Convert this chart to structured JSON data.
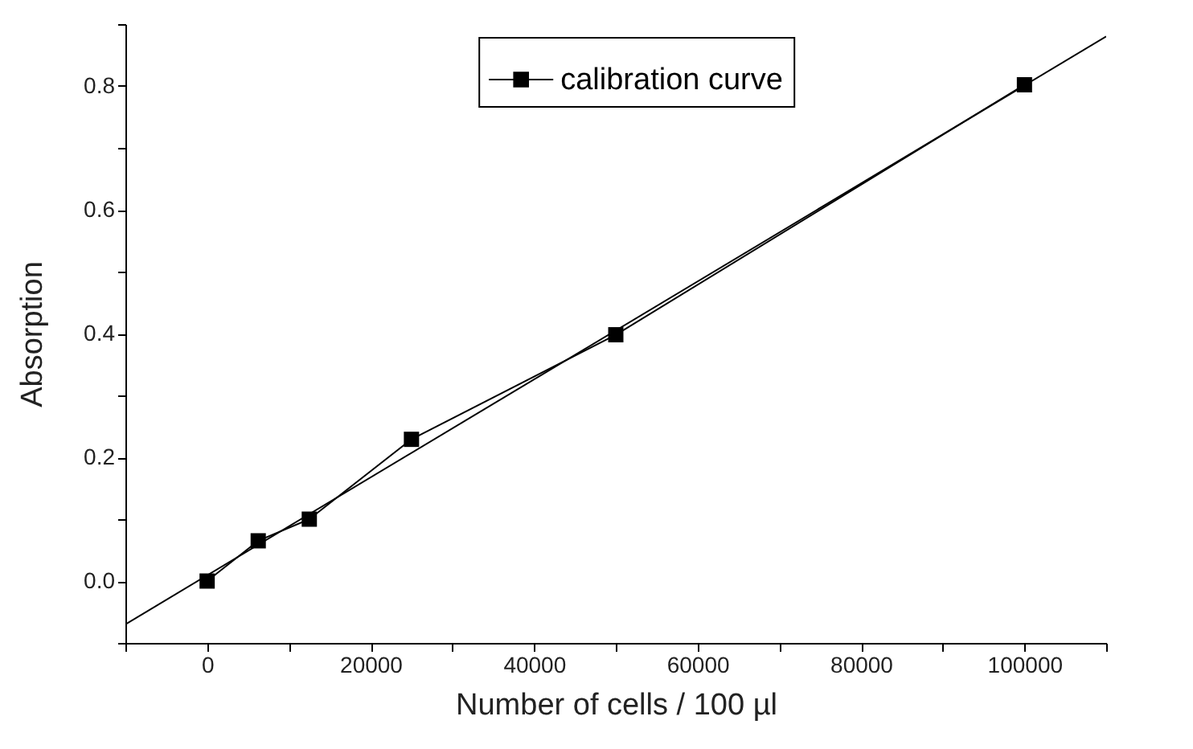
{
  "chart_data": {
    "type": "line",
    "xlabel": "Number of cells / 100 µl",
    "ylabel": "Absorption",
    "x": [
      0,
      6250,
      12500,
      25000,
      50000,
      100000
    ],
    "series": [
      {
        "name": "calibration curve",
        "color": "#000000",
        "values": [
          0.0,
          0.065,
          0.1,
          0.229,
          0.398,
          0.802
        ],
        "marker": "square"
      },
      {
        "type": "line",
        "color": "#000000",
        "x": [
          -10000,
          110000
        ],
        "values": [
          -0.07,
          0.88
        ],
        "marker": "none"
      }
    ],
    "xlim": [
      -10000,
      110000
    ],
    "ylim": [
      -0.1,
      0.9
    ],
    "xticks": [
      {
        "value": -10000,
        "label": null
      },
      0,
      {
        "value": 10000,
        "label": null
      },
      20000,
      {
        "value": 30000,
        "label": null
      },
      40000,
      {
        "value": 50000,
        "label": null
      },
      60000,
      {
        "value": 70000,
        "label": null
      },
      80000,
      {
        "value": 90000,
        "label": null
      },
      100000,
      {
        "value": 110000,
        "label": null
      }
    ],
    "yticks": [
      {
        "value": -0.1,
        "label": null
      },
      {
        "value": 0.0,
        "label": "0.0"
      },
      {
        "value": 0.1,
        "label": null
      },
      {
        "value": 0.2,
        "label": "0.2"
      },
      {
        "value": 0.3,
        "label": null
      },
      {
        "value": 0.4,
        "label": "0.4"
      },
      {
        "value": 0.5,
        "label": null
      },
      {
        "value": 0.6,
        "label": "0.6"
      },
      {
        "value": 0.7,
        "label": null
      },
      {
        "value": 0.8,
        "label": "0.8"
      },
      {
        "value": 0.9,
        "label": null
      }
    ],
    "grid": false,
    "legend": "top"
  }
}
